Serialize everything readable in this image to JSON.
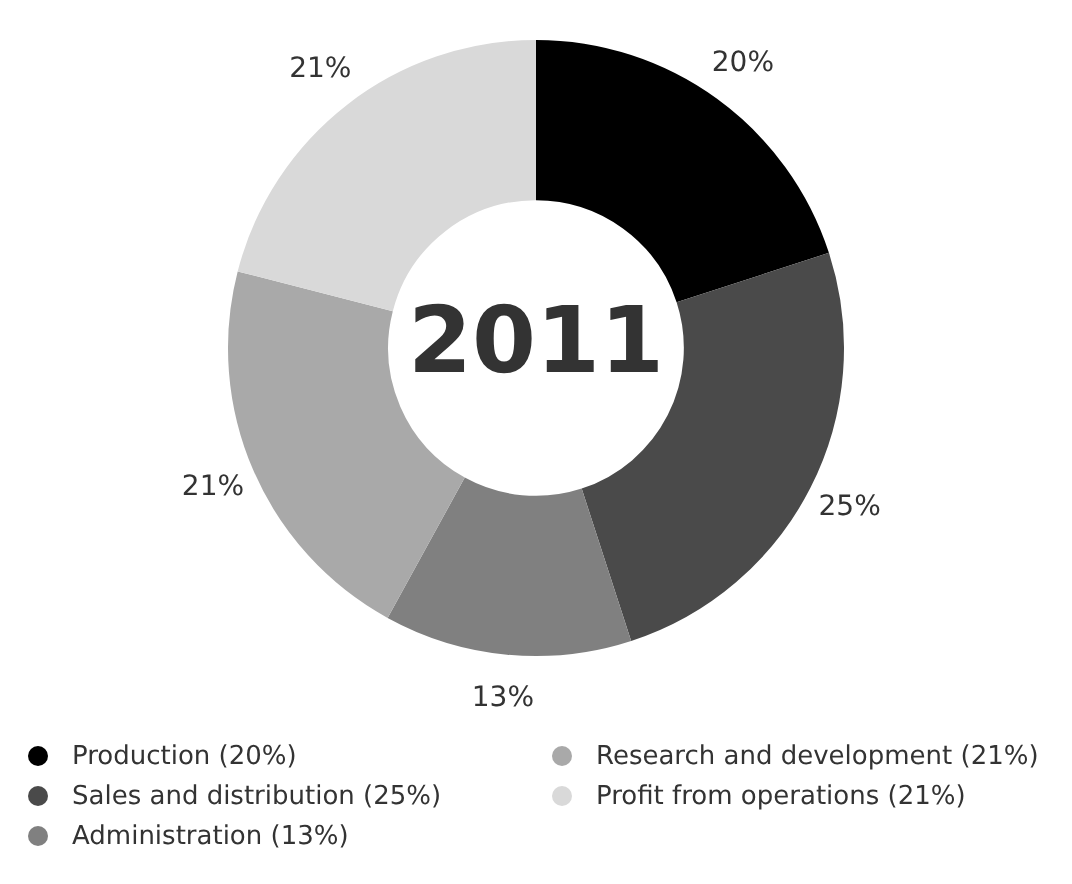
{
  "chart_data": {
    "type": "donut",
    "categories": [
      "Production (20%)",
      "Sales and distribution (25%)",
      "Administration (13%)",
      "Research and development (21%)",
      "Profit from operations (21%)"
    ],
    "values": [
      20,
      25,
      13,
      21,
      21
    ],
    "value_labels": [
      "20%",
      "25%",
      "13%",
      "21%",
      "21%"
    ],
    "colors": [
      "#000000",
      "#4a4a4a",
      "#808080",
      "#a9a9a9",
      "#d9d9d9"
    ],
    "legend": "bottom",
    "annotations": [
      "2011"
    ]
  }
}
